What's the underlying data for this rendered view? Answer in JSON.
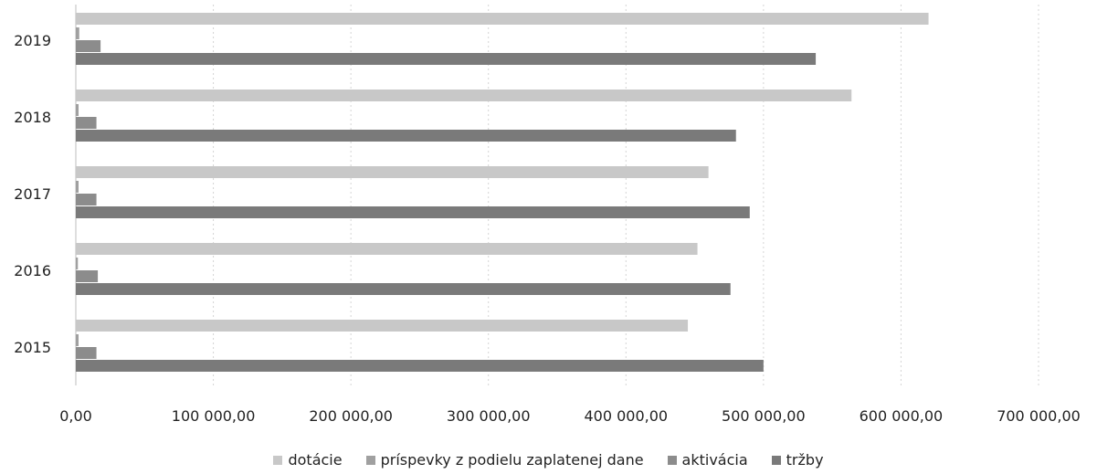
{
  "chart_data": {
    "type": "bar",
    "orientation": "horizontal",
    "categories": [
      "2019",
      "2018",
      "2017",
      "2016",
      "2015"
    ],
    "series": [
      {
        "name": "dotácie",
        "color": "#c8c8c8",
        "values": [
          620000,
          564000,
          460000,
          452000,
          445000
        ]
      },
      {
        "name": "príspevky z podielu zaplatenej dane",
        "color": "#a0a0a0",
        "values": [
          2500,
          2000,
          2000,
          1500,
          2000
        ]
      },
      {
        "name": "aktivácia",
        "color": "#8c8c8c",
        "values": [
          18000,
          15000,
          15000,
          16000,
          15000
        ]
      },
      {
        "name": "tržby",
        "color": "#7a7a7a",
        "values": [
          538000,
          480000,
          490000,
          476000,
          500000
        ]
      }
    ],
    "x_ticks": [
      "0,00",
      "100 000,00",
      "200 000,00",
      "300 000,00",
      "400 000,00",
      "500 000,00",
      "600 000,00",
      "700 000,00"
    ],
    "x_tick_values": [
      0,
      100000,
      200000,
      300000,
      400000,
      500000,
      600000,
      700000
    ],
    "xlim": [
      0,
      700000
    ],
    "grid": true,
    "legend_position": "bottom"
  }
}
